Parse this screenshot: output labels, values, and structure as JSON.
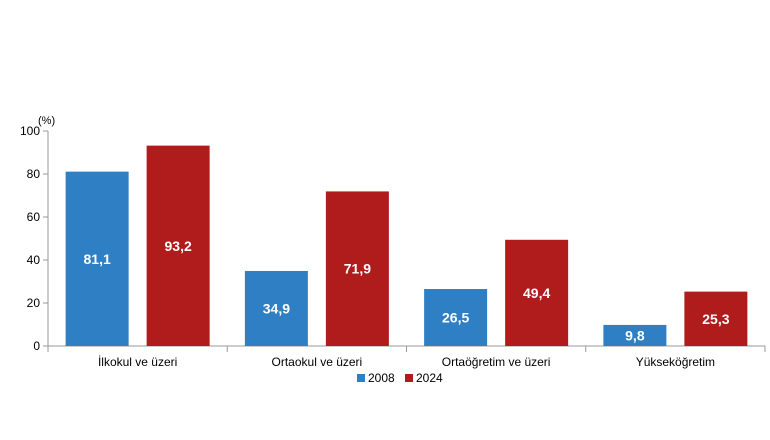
{
  "chart_data": {
    "type": "bar",
    "unit_label": "(%)",
    "categories": [
      "İlkokul ve üzeri",
      "Ortaokul ve üzeri",
      "Ortaöğretim ve üzeri",
      "Yükseköğretim"
    ],
    "series": [
      {
        "name": "2008",
        "color": "#2f7fc4",
        "values": [
          81.1,
          34.9,
          26.5,
          9.8
        ],
        "labels": [
          "81,1",
          "34,9",
          "26,5",
          "9,8"
        ]
      },
      {
        "name": "2024",
        "color": "#b01c1c",
        "values": [
          93.2,
          71.9,
          49.4,
          25.3
        ],
        "labels": [
          "93,2",
          "71,9",
          "49,4",
          "25,3"
        ]
      }
    ],
    "ylim": [
      0,
      100
    ],
    "yticks": [
      0,
      20,
      40,
      60,
      80,
      100
    ],
    "grid": false,
    "legend_position": "bottom-center"
  }
}
